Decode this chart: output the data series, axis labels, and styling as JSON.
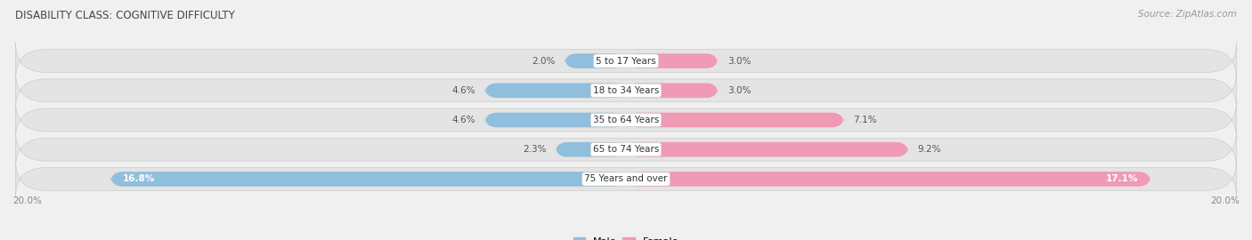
{
  "title": "DISABILITY CLASS: COGNITIVE DIFFICULTY",
  "source": "Source: ZipAtlas.com",
  "categories": [
    "5 to 17 Years",
    "18 to 34 Years",
    "35 to 64 Years",
    "65 to 74 Years",
    "75 Years and over"
  ],
  "male_values": [
    2.0,
    4.6,
    4.6,
    2.3,
    16.8
  ],
  "female_values": [
    3.0,
    3.0,
    7.1,
    9.2,
    17.1
  ],
  "max_val": 20.0,
  "male_color": "#90bedd",
  "female_color": "#f09ab5",
  "bg_row_color": "#e8e8e8",
  "bg_fig_color": "#f0f0f0",
  "label_color": "#333333",
  "title_color": "#444444",
  "axis_label_color": "#888888",
  "legend_male_color": "#90bedd",
  "legend_female_color": "#f09ab5",
  "white_text_threshold_male": 5.0,
  "white_text_threshold_female": 10.0
}
